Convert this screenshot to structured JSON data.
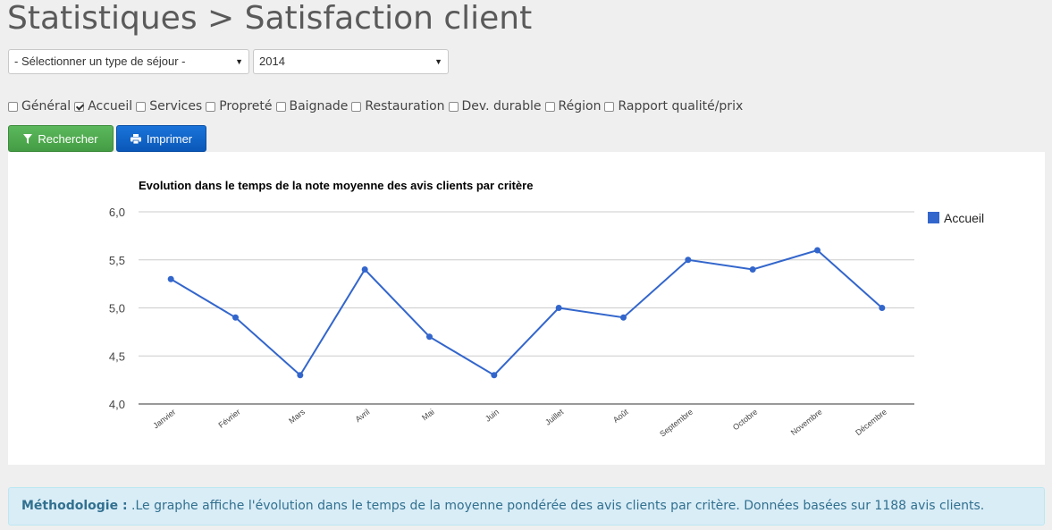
{
  "page": {
    "title": "Statistiques > Satisfaction client"
  },
  "selects": {
    "sejour": {
      "value": "- Sélectionner un type de séjour -"
    },
    "year": {
      "value": "2014"
    }
  },
  "filters": [
    {
      "label": "Général",
      "checked": false
    },
    {
      "label": "Accueil",
      "checked": true
    },
    {
      "label": "Services",
      "checked": false
    },
    {
      "label": "Propreté",
      "checked": false
    },
    {
      "label": "Baignade",
      "checked": false
    },
    {
      "label": "Restauration",
      "checked": false
    },
    {
      "label": "Dev. durable",
      "checked": false
    },
    {
      "label": "Région",
      "checked": false
    },
    {
      "label": "Rapport qualité/prix",
      "checked": false
    }
  ],
  "buttons": {
    "search_label": "Rechercher",
    "print_label": "Imprimer",
    "search_icon": "filter-icon",
    "print_icon": "printer-icon"
  },
  "colors": {
    "series": "#3366cc",
    "search_button": "#5cb85c",
    "print_button": "#0a58b8",
    "info_background": "#d9edf7",
    "info_text": "#31708f"
  },
  "chart_data": {
    "type": "line",
    "title": "Evolution dans le temps de la note moyenne des avis clients par critère",
    "categories": [
      "Janvier",
      "Février",
      "Mars",
      "Avril",
      "Mai",
      "Juin",
      "Juillet",
      "Août",
      "Septembre",
      "Octobre",
      "Novembre",
      "Décembre"
    ],
    "series": [
      {
        "name": "Accueil",
        "values": [
          5.3,
          4.9,
          4.3,
          5.4,
          4.7,
          4.3,
          5.0,
          4.9,
          5.5,
          5.4,
          5.6,
          5.0
        ]
      }
    ],
    "ylim": [
      4.0,
      6.0
    ],
    "yticks": [
      "4,0",
      "4,5",
      "5,0",
      "5,5",
      "6,0"
    ],
    "grid": true,
    "legend": "right"
  },
  "methodology": {
    "label": "Méthodologie :",
    "text": " .Le graphe affiche l'évolution dans le temps de la moyenne pondérée des avis clients par critère. Données basées sur 1188 avis clients."
  }
}
